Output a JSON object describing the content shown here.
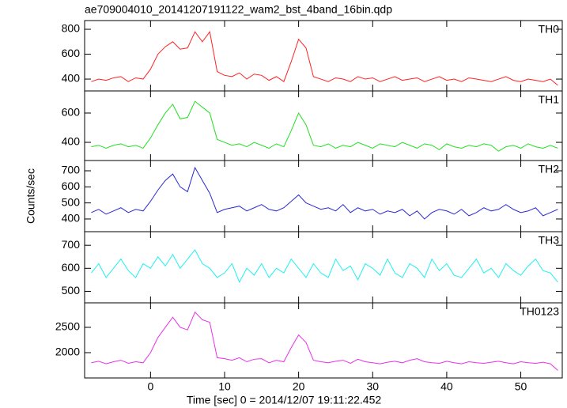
{
  "chart_data": [
    {
      "type": "line",
      "title": "ae709004010_20141207191122_wam2_bst_4band_16bin.qdp",
      "x": [
        -8,
        -7,
        -6,
        -5,
        -4,
        -3,
        -2,
        -1,
        0,
        1,
        2,
        3,
        4,
        5,
        6,
        7,
        8,
        9,
        10,
        11,
        12,
        13,
        14,
        15,
        16,
        17,
        18,
        19,
        20,
        21,
        22,
        23,
        24,
        25,
        26,
        27,
        28,
        29,
        30,
        31,
        32,
        33,
        34,
        35,
        36,
        37,
        38,
        39,
        40,
        41,
        42,
        43,
        44,
        45,
        46,
        47,
        48,
        49,
        50,
        51,
        52,
        53,
        54,
        55
      ],
      "series": [
        {
          "name": "TH0",
          "color": "#ff2020",
          "values": [
            380,
            400,
            390,
            410,
            420,
            380,
            410,
            400,
            480,
            600,
            660,
            700,
            640,
            650,
            780,
            700,
            780,
            460,
            430,
            420,
            450,
            400,
            440,
            430,
            390,
            420,
            380,
            540,
            720,
            650,
            420,
            400,
            380,
            410,
            400,
            380,
            420,
            400,
            410,
            380,
            400,
            420,
            390,
            400,
            410,
            380,
            400,
            420,
            390,
            400,
            380,
            410,
            400,
            390,
            380,
            400,
            420,
            390,
            380,
            400,
            390,
            380,
            400,
            350
          ]
        }
      ],
      "xlim": [
        -8.9,
        55.6
      ],
      "xticks": [
        0,
        10,
        20,
        30,
        40,
        50
      ],
      "ylim": [
        305,
        870
      ],
      "yticks": [
        400,
        600,
        800
      ]
    },
    {
      "type": "line",
      "x": [
        -8,
        -7,
        -6,
        -5,
        -4,
        -3,
        -2,
        -1,
        0,
        1,
        2,
        3,
        4,
        5,
        6,
        7,
        8,
        9,
        10,
        11,
        12,
        13,
        14,
        15,
        16,
        17,
        18,
        19,
        20,
        21,
        22,
        23,
        24,
        25,
        26,
        27,
        28,
        29,
        30,
        31,
        32,
        33,
        34,
        35,
        36,
        37,
        38,
        39,
        40,
        41,
        42,
        43,
        44,
        45,
        46,
        47,
        48,
        49,
        50,
        51,
        52,
        53,
        54,
        55
      ],
      "series": [
        {
          "name": "TH1",
          "color": "#22e022",
          "values": [
            370,
            380,
            360,
            380,
            390,
            370,
            380,
            360,
            430,
            520,
            600,
            660,
            560,
            570,
            680,
            640,
            600,
            420,
            400,
            380,
            390,
            370,
            400,
            380,
            360,
            390,
            370,
            480,
            600,
            520,
            380,
            370,
            390,
            360,
            380,
            370,
            400,
            380,
            360,
            390,
            380,
            370,
            400,
            380,
            360,
            390,
            380,
            350,
            390,
            370,
            360,
            380,
            370,
            390,
            380,
            340,
            370,
            380,
            360,
            390,
            370,
            360,
            380,
            360
          ]
        }
      ],
      "xlim": [
        -8.9,
        55.6
      ],
      "xticks": [
        0,
        10,
        20,
        30,
        40,
        50
      ],
      "ylim": [
        276,
        751
      ],
      "yticks": [
        400,
        600
      ]
    },
    {
      "type": "line",
      "ylabel": "Counts/sec",
      "x": [
        -8,
        -7,
        -6,
        -5,
        -4,
        -3,
        -2,
        -1,
        0,
        1,
        2,
        3,
        4,
        5,
        6,
        7,
        8,
        9,
        10,
        11,
        12,
        13,
        14,
        15,
        16,
        17,
        18,
        19,
        20,
        21,
        22,
        23,
        24,
        25,
        26,
        27,
        28,
        29,
        30,
        31,
        32,
        33,
        34,
        35,
        36,
        37,
        38,
        39,
        40,
        41,
        42,
        43,
        44,
        45,
        46,
        47,
        48,
        49,
        50,
        51,
        52,
        53,
        54,
        55
      ],
      "series": [
        {
          "name": "TH2",
          "color": "#2a2ad0",
          "values": [
            440,
            460,
            430,
            450,
            470,
            440,
            460,
            450,
            510,
            580,
            640,
            680,
            600,
            570,
            720,
            640,
            560,
            440,
            460,
            470,
            480,
            450,
            470,
            490,
            460,
            450,
            470,
            510,
            550,
            500,
            480,
            460,
            470,
            450,
            490,
            440,
            470,
            450,
            460,
            430,
            450,
            440,
            460,
            420,
            450,
            400,
            440,
            460,
            450,
            430,
            460,
            420,
            440,
            470,
            450,
            460,
            490,
            460,
            440,
            450,
            470,
            420,
            440,
            460
          ]
        }
      ],
      "xlim": [
        -8.9,
        55.6
      ],
      "xticks": [
        0,
        10,
        20,
        30,
        40,
        50
      ],
      "ylim": [
        321,
        764
      ],
      "yticks": [
        400,
        500,
        600,
        700
      ]
    },
    {
      "type": "line",
      "x": [
        -8,
        -7,
        -6,
        -5,
        -4,
        -3,
        -2,
        -1,
        0,
        1,
        2,
        3,
        4,
        5,
        6,
        7,
        8,
        9,
        10,
        11,
        12,
        13,
        14,
        15,
        16,
        17,
        18,
        19,
        20,
        21,
        22,
        23,
        24,
        25,
        26,
        27,
        28,
        29,
        30,
        31,
        32,
        33,
        34,
        35,
        36,
        37,
        38,
        39,
        40,
        41,
        42,
        43,
        44,
        45,
        46,
        47,
        48,
        49,
        50,
        51,
        52,
        53,
        54,
        55
      ],
      "series": [
        {
          "name": "TH3",
          "color": "#20f0f0",
          "values": [
            580,
            620,
            560,
            600,
            640,
            590,
            560,
            620,
            600,
            650,
            610,
            660,
            600,
            640,
            680,
            620,
            600,
            560,
            580,
            620,
            540,
            600,
            570,
            620,
            560,
            600,
            580,
            640,
            600,
            560,
            620,
            580,
            560,
            640,
            590,
            610,
            550,
            620,
            600,
            570,
            640,
            580,
            560,
            620,
            600,
            560,
            640,
            590,
            620,
            570,
            560,
            600,
            640,
            580,
            600,
            560,
            620,
            590,
            570,
            610,
            640,
            590,
            580,
            540
          ]
        }
      ],
      "xlim": [
        -8.9,
        55.6
      ],
      "xticks": [
        0,
        10,
        20,
        30,
        40,
        50
      ],
      "ylim": [
        450,
        759
      ],
      "yticks": [
        500,
        600,
        700
      ]
    },
    {
      "type": "line",
      "xlabel": "Time [sec] 0 = 2014/12/07 19:11:22.452",
      "x": [
        -8,
        -7,
        -6,
        -5,
        -4,
        -3,
        -2,
        -1,
        0,
        1,
        2,
        3,
        4,
        5,
        6,
        7,
        8,
        9,
        10,
        11,
        12,
        13,
        14,
        15,
        16,
        17,
        18,
        19,
        20,
        21,
        22,
        23,
        24,
        25,
        26,
        27,
        28,
        29,
        30,
        31,
        32,
        33,
        34,
        35,
        36,
        37,
        38,
        39,
        40,
        41,
        42,
        43,
        44,
        45,
        46,
        47,
        48,
        49,
        50,
        51,
        52,
        53,
        54,
        55
      ],
      "series": [
        {
          "name": "TH0123",
          "color": "#e830e8",
          "values": [
            1800,
            1830,
            1780,
            1820,
            1850,
            1790,
            1820,
            1800,
            2000,
            2300,
            2500,
            2700,
            2500,
            2450,
            2800,
            2650,
            2600,
            1900,
            1880,
            1850,
            1900,
            1820,
            1870,
            1880,
            1800,
            1850,
            1820,
            2100,
            2350,
            2200,
            1850,
            1820,
            1800,
            1830,
            1850,
            1790,
            1870,
            1820,
            1800,
            1780,
            1810,
            1830,
            1800,
            1850,
            1880,
            1820,
            1800,
            1790,
            1830,
            1800,
            1780,
            1820,
            1800,
            1790,
            1810,
            1830,
            1800,
            1780,
            1820,
            1800,
            1790,
            1810,
            1780,
            1650
          ]
        }
      ],
      "xlim": [
        -8.9,
        55.6
      ],
      "xticks": [
        0,
        10,
        20,
        30,
        40,
        50
      ],
      "ylim": [
        1500,
        2984
      ],
      "yticks": [
        2000,
        2500
      ]
    }
  ]
}
